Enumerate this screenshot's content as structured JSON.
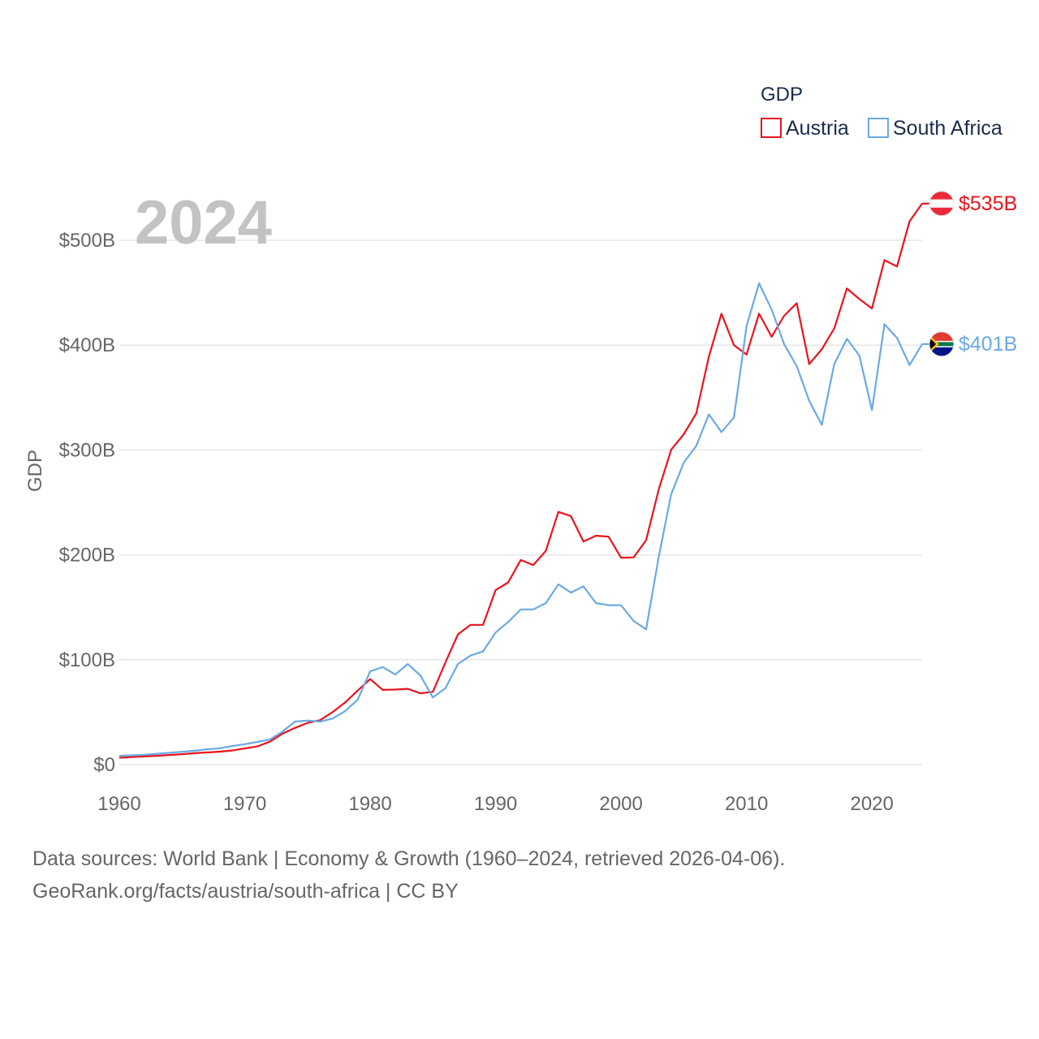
{
  "chart_data": {
    "type": "line",
    "title": "",
    "year_label": "2024",
    "xlabel": "",
    "ylabel": "GDP",
    "xlim": [
      1960,
      2024
    ],
    "ylim": [
      0,
      500
    ],
    "y_unit": "billion USD",
    "x_ticks": [
      {
        "value": 1960,
        "label": "1960"
      },
      {
        "value": 1970,
        "label": "1970"
      },
      {
        "value": 1980,
        "label": "1980"
      },
      {
        "value": 1990,
        "label": "1990"
      },
      {
        "value": 2000,
        "label": "2000"
      },
      {
        "value": 2010,
        "label": "2010"
      },
      {
        "value": 2020,
        "label": "2020"
      }
    ],
    "y_ticks": [
      {
        "value": 0,
        "label": "$0"
      },
      {
        "value": 100,
        "label": "$100B"
      },
      {
        "value": 200,
        "label": "$200B"
      },
      {
        "value": 300,
        "label": "$300B"
      },
      {
        "value": 400,
        "label": "$400B"
      },
      {
        "value": 500,
        "label": "$500B"
      }
    ],
    "legend": {
      "title": "GDP",
      "position": "top-right"
    },
    "grid": true,
    "x": [
      1960,
      1961,
      1962,
      1963,
      1964,
      1965,
      1966,
      1967,
      1968,
      1969,
      1970,
      1971,
      1972,
      1973,
      1974,
      1975,
      1976,
      1977,
      1978,
      1979,
      1980,
      1981,
      1982,
      1983,
      1984,
      1985,
      1986,
      1987,
      1988,
      1989,
      1990,
      1991,
      1992,
      1993,
      1994,
      1995,
      1996,
      1997,
      1998,
      1999,
      2000,
      2001,
      2002,
      2003,
      2004,
      2005,
      2006,
      2007,
      2008,
      2009,
      2010,
      2011,
      2012,
      2013,
      2014,
      2015,
      2016,
      2017,
      2018,
      2019,
      2020,
      2021,
      2022,
      2023,
      2024
    ],
    "series": [
      {
        "name": "Austria",
        "color": "#e8141e",
        "end_label": "$535B",
        "flag_icon": "austria-flag-icon",
        "values": [
          6.6,
          7.3,
          7.8,
          8.4,
          9.2,
          10.0,
          10.9,
          11.6,
          12.4,
          13.5,
          15.4,
          17.3,
          21.9,
          29.5,
          35.0,
          39.8,
          42.4,
          50.1,
          59.3,
          70.6,
          81.6,
          71.3,
          71.6,
          72.3,
          68.0,
          69.4,
          97.5,
          124.2,
          133.3,
          133.3,
          166.5,
          173.8,
          195.1,
          190.3,
          203.8,
          241.0,
          237.0,
          212.8,
          218.3,
          217.4,
          197.3,
          197.6,
          214.0,
          262.3,
          300.4,
          315.0,
          335.0,
          389.0,
          430.0,
          400.0,
          391.0,
          430.0,
          408.0,
          428.0,
          440.0,
          382.0,
          396.0,
          416.0,
          454.0,
          444.0,
          435.0,
          481.0,
          475.0,
          518.0,
          535.0
        ]
      },
      {
        "name": "South Africa",
        "color": "#6aaae4",
        "end_label": "$401B",
        "flag_icon": "south-africa-flag-icon",
        "values": [
          8.4,
          8.9,
          9.4,
          10.4,
          11.3,
          12.2,
          13.2,
          14.6,
          15.6,
          17.7,
          19.5,
          21.7,
          23.9,
          31.4,
          41.0,
          42.0,
          41.0,
          44.0,
          51.0,
          62.0,
          89.0,
          93.0,
          86.0,
          96.0,
          85.0,
          64.0,
          73.0,
          96.0,
          104.0,
          108.0,
          126.0,
          136.0,
          148.0,
          148.0,
          154.0,
          172.0,
          164.0,
          170.0,
          154.0,
          152.0,
          152.0,
          137.0,
          129.0,
          198.0,
          258.0,
          288.0,
          304.0,
          334.0,
          317.0,
          331.0,
          418.0,
          459.0,
          434.0,
          401.0,
          380.0,
          347.0,
          324.0,
          382.0,
          406.0,
          390.0,
          338.0,
          420.0,
          407.0,
          381.0,
          401.0
        ]
      }
    ],
    "source_line_1": "Data sources: World Bank | Economy & Growth (1960–2024, retrieved 2026-04-06).",
    "source_line_2": "GeoRank.org/facts/austria/south-africa | CC BY"
  },
  "colors": {
    "axis_text": "#666666",
    "grid": "#e6e6e6",
    "year_watermark": "#c3c3c3",
    "legend_text": "#1a2b4a"
  }
}
